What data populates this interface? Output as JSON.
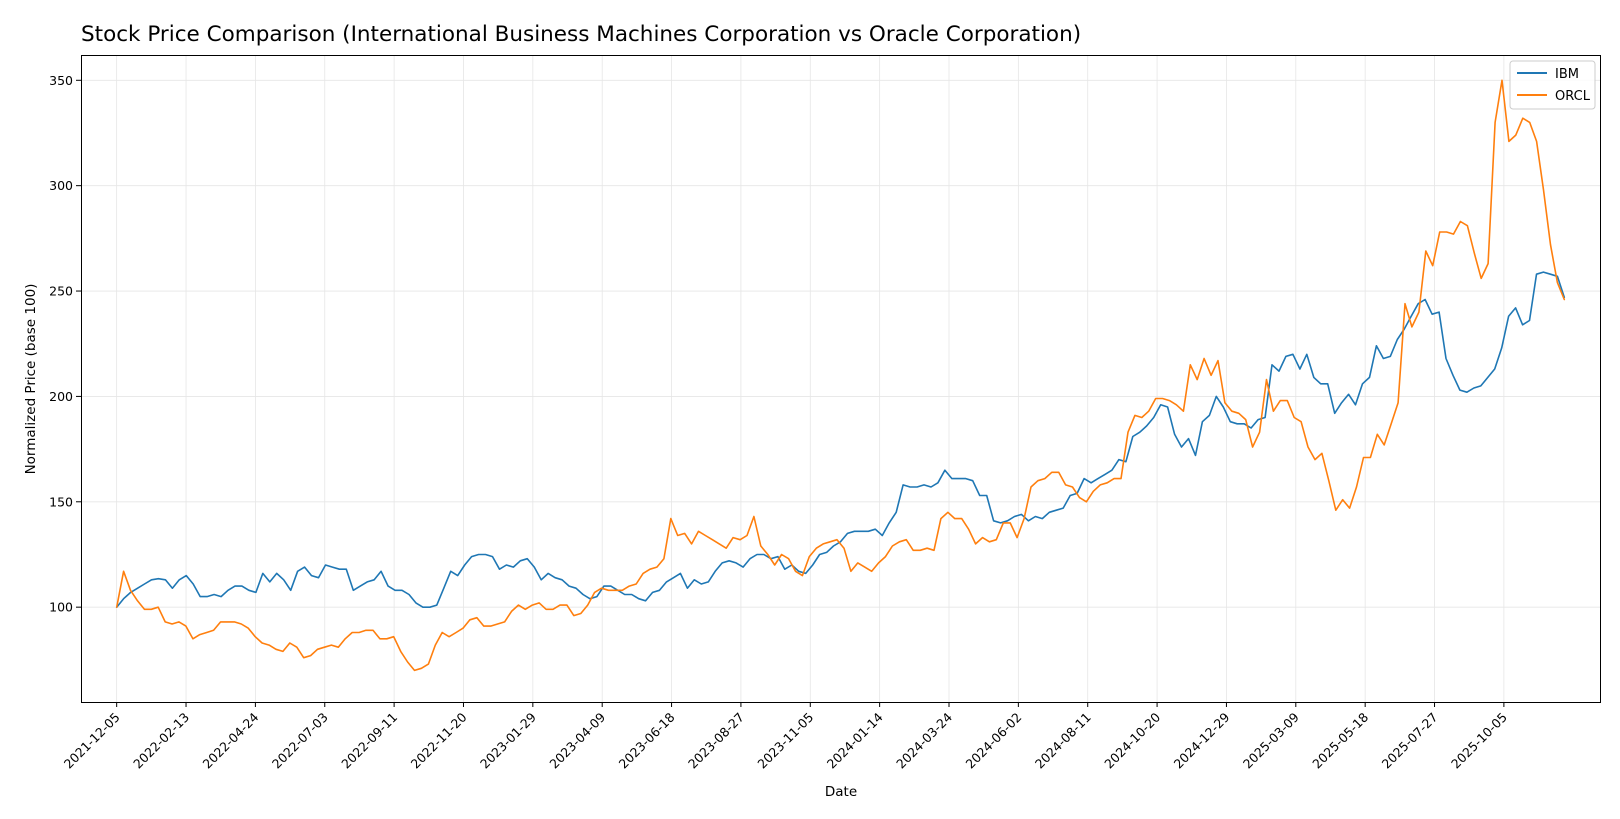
{
  "chart_data": {
    "type": "line",
    "title": "Stock Price Comparison (International Business Machines Corporation vs Oracle Corporation)",
    "xlabel": "Date",
    "ylabel": "Normalized Price (base 100)",
    "x_start": "2021-12-05",
    "x_end": "2025-12-05",
    "xlim": [
      "2021-10-30",
      "2026-01-10"
    ],
    "ylim": [
      55,
      362
    ],
    "grid": true,
    "legend_position": "top-right",
    "xticks": [
      "2021-12-05",
      "2022-02-13",
      "2022-04-24",
      "2022-07-03",
      "2022-09-11",
      "2022-11-20",
      "2023-01-29",
      "2023-04-09",
      "2023-06-18",
      "2023-08-27",
      "2023-11-05",
      "2024-01-14",
      "2024-03-24",
      "2024-06-02",
      "2024-08-11",
      "2024-10-20",
      "2024-12-29",
      "2025-03-09",
      "2025-05-18",
      "2025-07-27",
      "2025-10-05"
    ],
    "yticks": [
      100,
      150,
      200,
      250,
      300,
      350
    ],
    "series": [
      {
        "name": "IBM",
        "color": "#1f77b4",
        "values": [
          100,
          104,
          107,
          109,
          111,
          113,
          113.5,
          113,
          109,
          113,
          115,
          111,
          105,
          105,
          106,
          105,
          108,
          110,
          110,
          108,
          107,
          116,
          112,
          116,
          113,
          108,
          117,
          119,
          115,
          114,
          120,
          119,
          118,
          118,
          108,
          110,
          112,
          113,
          117,
          110,
          108,
          108,
          106,
          102,
          100,
          100,
          101,
          109,
          117,
          115,
          120,
          124,
          125,
          125,
          124,
          118,
          120,
          119,
          122,
          123,
          119,
          113,
          116,
          114,
          113,
          110,
          109,
          106,
          104,
          105,
          110,
          110,
          108,
          106,
          106,
          104,
          103,
          107,
          108,
          112,
          114,
          116,
          109,
          113,
          111,
          112,
          117,
          121,
          122,
          121,
          119,
          123,
          125,
          125,
          123,
          124,
          118,
          120,
          117,
          116,
          120,
          125,
          126,
          129,
          131,
          135,
          136,
          136,
          136,
          137,
          134,
          140,
          145,
          158,
          157,
          157,
          158,
          157,
          159,
          165,
          161,
          161,
          161,
          160,
          153,
          153,
          141,
          140,
          141,
          143,
          144,
          141,
          143,
          142,
          145,
          146,
          147,
          153,
          154,
          161,
          159,
          161,
          163,
          165,
          170,
          169,
          181,
          183,
          186,
          190,
          196,
          195,
          182,
          176,
          180,
          172,
          188,
          191,
          200,
          195,
          188,
          187,
          187,
          185,
          189,
          190,
          215,
          212,
          219,
          220,
          213,
          220,
          209,
          206,
          206,
          192,
          197,
          201,
          196,
          206,
          209,
          224,
          218,
          219,
          227,
          232,
          238,
          244,
          246,
          239,
          240,
          218,
          210,
          203,
          202,
          204,
          205,
          209,
          213,
          223,
          238,
          242,
          234,
          236,
          258,
          259,
          258,
          257,
          247
        ]
      },
      {
        "name": "ORCL",
        "color": "#ff7f0e",
        "values": [
          100,
          117,
          108,
          103,
          99,
          99,
          100,
          93,
          92,
          93,
          91,
          85,
          87,
          88,
          89,
          93,
          93,
          93,
          92,
          90,
          86,
          83,
          82,
          80,
          79,
          83,
          81,
          76,
          77,
          80,
          81,
          82,
          81,
          85,
          88,
          88,
          89,
          89,
          85,
          85,
          86,
          79,
          74,
          70,
          71,
          73,
          82,
          88,
          86,
          88,
          90,
          94,
          95,
          91,
          91,
          92,
          93,
          98,
          101,
          99,
          101,
          102,
          99,
          99,
          101,
          101,
          96,
          97,
          101,
          107,
          109,
          108,
          108,
          108,
          110,
          111,
          116,
          118,
          119,
          123,
          142,
          134,
          135,
          130,
          136,
          134,
          132,
          130,
          128,
          133,
          132,
          134,
          143,
          129,
          125,
          120,
          125,
          123,
          117,
          115,
          124,
          128,
          130,
          131,
          132,
          128,
          117,
          121,
          119,
          117,
          121,
          124,
          129,
          131,
          132,
          127,
          127,
          128,
          127,
          142,
          145,
          142,
          142,
          137,
          130,
          133,
          131,
          132,
          140,
          140,
          133,
          142,
          157,
          160,
          161,
          164,
          164,
          158,
          157,
          152,
          150,
          155,
          158,
          159,
          161,
          161,
          183,
          191,
          190,
          193,
          199,
          199,
          198,
          196,
          193,
          215,
          208,
          218,
          210,
          217,
          197,
          193,
          192,
          189,
          176,
          183,
          208,
          193,
          198,
          198,
          190,
          188,
          176,
          170,
          173,
          160,
          146,
          151,
          147,
          157,
          171,
          171,
          182,
          177,
          187,
          197,
          244,
          233,
          240,
          269,
          262,
          278,
          278,
          277,
          283,
          281,
          268,
          256,
          263,
          330,
          350,
          321,
          324,
          332,
          330,
          321,
          298,
          272,
          254,
          246
        ]
      }
    ]
  }
}
